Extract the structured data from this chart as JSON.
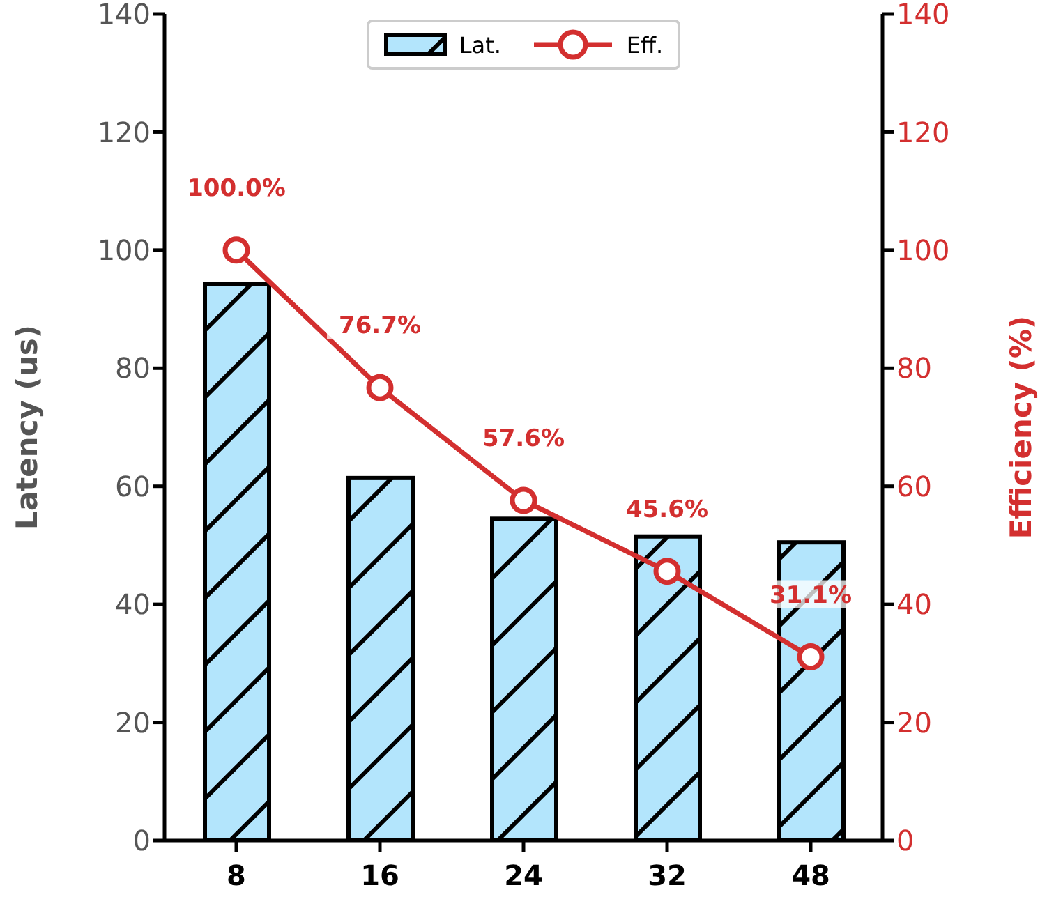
{
  "chart_data": {
    "type": "bar",
    "categories": [
      "8",
      "16",
      "24",
      "32",
      "48"
    ],
    "ylabel": "Latency (us)",
    "y2label": "Efficiency (%)",
    "ylim": [
      0,
      140
    ],
    "yticks": [
      0,
      20,
      40,
      60,
      80,
      100,
      120,
      140
    ],
    "y2lim": [
      0,
      140
    ],
    "y2ticks": [
      0,
      20,
      40,
      60,
      80,
      100,
      120,
      140
    ],
    "grid": false,
    "legend": "top",
    "marker": "circle",
    "line_style": "solid",
    "series": [
      {
        "name": "Lat.",
        "color": "#b3e5fc",
        "values": [
          94.2,
          61.4,
          54.5,
          51.5,
          50.5
        ]
      },
      {
        "name": "Eff.",
        "type": "line",
        "axis": "y2",
        "color": "#d32f2f",
        "values": [
          100,
          76.7,
          57.6,
          45.6,
          31.1
        ],
        "value_labels": [
          "100.0%",
          "76.7%",
          "57.6%",
          "45.6%",
          "31.1%"
        ]
      }
    ]
  }
}
